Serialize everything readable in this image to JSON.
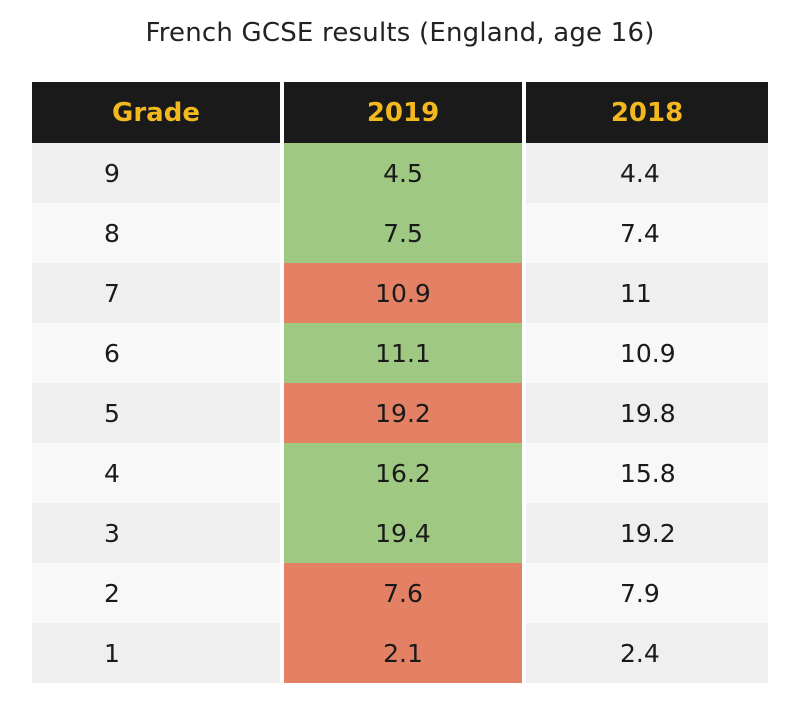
{
  "title": "French GCSE results (England, age 16)",
  "colors": {
    "header_bg": "#1a1a1a",
    "header_text": "#f2b81d",
    "increase": "#9fc882",
    "decrease": "#e48063",
    "row_light": "#f8f8f8",
    "row_shade": "#efefef"
  },
  "chart_data": {
    "type": "table",
    "title": "French GCSE results (England, age 16)",
    "columns": [
      "Grade",
      "2019",
      "2018"
    ],
    "rows": [
      {
        "grade": "9",
        "y2019": "4.5",
        "y2018": "4.4",
        "change": "up"
      },
      {
        "grade": "8",
        "y2019": "7.5",
        "y2018": "7.4",
        "change": "up"
      },
      {
        "grade": "7",
        "y2019": "10.9",
        "y2018": "11",
        "change": "down"
      },
      {
        "grade": "6",
        "y2019": "11.1",
        "y2018": "10.9",
        "change": "up"
      },
      {
        "grade": "5",
        "y2019": "19.2",
        "y2018": "19.8",
        "change": "down"
      },
      {
        "grade": "4",
        "y2019": "16.2",
        "y2018": "15.8",
        "change": "up"
      },
      {
        "grade": "3",
        "y2019": "19.4",
        "y2018": "19.2",
        "change": "up"
      },
      {
        "grade": "2",
        "y2019": "7.6",
        "y2018": "7.9",
        "change": "down"
      },
      {
        "grade": "1",
        "y2019": "2.1",
        "y2018": "2.4",
        "change": "down"
      }
    ]
  }
}
